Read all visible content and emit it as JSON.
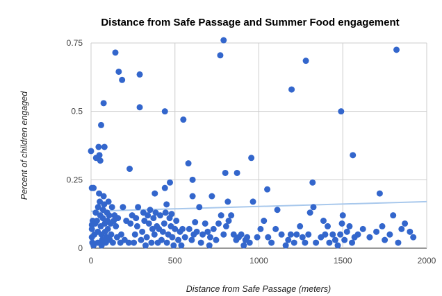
{
  "chart_data": {
    "type": "scatter",
    "title": "Distance from Safe Passage and Summer Food engagement",
    "xlabel": "Distance from Safe Passage (meters)",
    "ylabel": "Percent of children engaged",
    "xlim": [
      0,
      2000
    ],
    "ylim": [
      0,
      0.75
    ],
    "x_ticks": [
      "0",
      "500",
      "1000",
      "1500",
      "2000"
    ],
    "y_ticks": [
      "0",
      "0.25",
      "0.5",
      "0.75"
    ],
    "grid": true,
    "legend": "none",
    "colors": {
      "points": "#3366cc",
      "trendline": "#a8c8ec",
      "grid": "#cccccc"
    },
    "trendline": {
      "x": [
        0,
        2000
      ],
      "y": [
        0.135,
        0.17
      ]
    },
    "series": [
      {
        "points": [
          [
            0,
            0.355
          ],
          [
            5,
            0.22
          ],
          [
            15,
            0.22
          ],
          [
            30,
            0.33
          ],
          [
            45,
            0.37
          ],
          [
            50,
            0.34
          ],
          [
            55,
            0.32
          ],
          [
            60,
            0.45
          ],
          [
            75,
            0.53
          ],
          [
            80,
            0.37
          ],
          [
            145,
            0.715
          ],
          [
            165,
            0.645
          ],
          [
            185,
            0.615
          ],
          [
            290,
            0.635
          ],
          [
            290,
            0.515
          ],
          [
            440,
            0.5
          ],
          [
            550,
            0.47
          ],
          [
            580,
            0.31
          ],
          [
            605,
            0.25
          ],
          [
            605,
            0.19
          ],
          [
            645,
            0.15
          ],
          [
            620,
            0.095
          ],
          [
            720,
            0.19
          ],
          [
            770,
            0.705
          ],
          [
            790,
            0.76
          ],
          [
            800,
            0.275
          ],
          [
            815,
            0.17
          ],
          [
            870,
            0.275
          ],
          [
            955,
            0.33
          ],
          [
            965,
            0.17
          ],
          [
            1050,
            0.215
          ],
          [
            1110,
            0.14
          ],
          [
            1195,
            0.58
          ],
          [
            1280,
            0.685
          ],
          [
            1320,
            0.24
          ],
          [
            1490,
            0.5
          ],
          [
            1560,
            0.34
          ],
          [
            1820,
            0.725
          ],
          [
            1870,
            0.09
          ],
          [
            1720,
            0.2
          ],
          [
            230,
            0.29
          ],
          [
            380,
            0.2
          ],
          [
            440,
            0.22
          ],
          [
            450,
            0.16
          ],
          [
            470,
            0.24
          ],
          [
            480,
            0.125
          ],
          [
            10,
            0.1
          ],
          [
            5,
            0.085
          ],
          [
            5,
            0.07
          ],
          [
            5,
            0.04
          ],
          [
            8,
            0.02
          ],
          [
            15,
            0.01
          ],
          [
            20,
            0.05
          ],
          [
            25,
            0.09
          ],
          [
            28,
            0.13
          ],
          [
            35,
            0.1
          ],
          [
            40,
            0.06
          ],
          [
            40,
            0.02
          ],
          [
            42,
            0.15
          ],
          [
            48,
            0.2
          ],
          [
            52,
            0.17
          ],
          [
            55,
            0.12
          ],
          [
            58,
            0.08
          ],
          [
            62,
            0.05
          ],
          [
            63,
            0.01
          ],
          [
            66,
            0.03
          ],
          [
            70,
            0.11
          ],
          [
            72,
            0.14
          ],
          [
            75,
            0.19
          ],
          [
            78,
            0.16
          ],
          [
            82,
            0.09
          ],
          [
            84,
            0.06
          ],
          [
            88,
            0.02
          ],
          [
            92,
            0.04
          ],
          [
            95,
            0.13
          ],
          [
            98,
            0.1
          ],
          [
            100,
            0.07
          ],
          [
            104,
            0.17
          ],
          [
            108,
            0.12
          ],
          [
            112,
            0.03
          ],
          [
            116,
            0.09
          ],
          [
            120,
            0.05
          ],
          [
            125,
            0.15
          ],
          [
            130,
            0.02
          ],
          [
            135,
            0.1
          ],
          [
            140,
            0.12
          ],
          [
            148,
            0.08
          ],
          [
            155,
            0.04
          ],
          [
            160,
            0.11
          ],
          [
            175,
            0.02
          ],
          [
            180,
            0.05
          ],
          [
            190,
            0.15
          ],
          [
            200,
            0.03
          ],
          [
            210,
            0.1
          ],
          [
            225,
            0.02
          ],
          [
            235,
            0.09
          ],
          [
            245,
            0.12
          ],
          [
            255,
            0.02
          ],
          [
            262,
            0.05
          ],
          [
            268,
            0.11
          ],
          [
            275,
            0.08
          ],
          [
            280,
            0.15
          ],
          [
            298,
            0.03
          ],
          [
            305,
            0.06
          ],
          [
            312,
            0.13
          ],
          [
            318,
            0.1
          ],
          [
            325,
            0.01
          ],
          [
            332,
            0.04
          ],
          [
            338,
            0.12
          ],
          [
            345,
            0.09
          ],
          [
            352,
            0.14
          ],
          [
            360,
            0.02
          ],
          [
            366,
            0.07
          ],
          [
            372,
            0.11
          ],
          [
            378,
            0.05
          ],
          [
            385,
            0.13
          ],
          [
            392,
            0.08
          ],
          [
            398,
            0.02
          ],
          [
            405,
            0.07
          ],
          [
            412,
            0.12
          ],
          [
            420,
            0.03
          ],
          [
            428,
            0.06
          ],
          [
            436,
            0.09
          ],
          [
            444,
            0.13
          ],
          [
            452,
            0.02
          ],
          [
            460,
            0.05
          ],
          [
            468,
            0.11
          ],
          [
            476,
            0.08
          ],
          [
            484,
            0.04
          ],
          [
            492,
            0.01
          ],
          [
            500,
            0.07
          ],
          [
            508,
            0.1
          ],
          [
            520,
            0.03
          ],
          [
            530,
            0.06
          ],
          [
            538,
            0.01
          ],
          [
            545,
            0.07
          ],
          [
            560,
            0.04
          ],
          [
            585,
            0.07
          ],
          [
            600,
            0.03
          ],
          [
            612,
            0.05
          ],
          [
            630,
            0.06
          ],
          [
            655,
            0.02
          ],
          [
            665,
            0.05
          ],
          [
            680,
            0.09
          ],
          [
            695,
            0.06
          ],
          [
            705,
            0.01
          ],
          [
            710,
            0.04
          ],
          [
            730,
            0.07
          ],
          [
            745,
            0.03
          ],
          [
            760,
            0.09
          ],
          [
            775,
            0.12
          ],
          [
            790,
            0.05
          ],
          [
            805,
            0.08
          ],
          [
            820,
            0.1
          ],
          [
            835,
            0.12
          ],
          [
            850,
            0.05
          ],
          [
            865,
            0.03
          ],
          [
            880,
            0.04
          ],
          [
            895,
            0.05
          ],
          [
            910,
            0.01
          ],
          [
            920,
            0.03
          ],
          [
            930,
            0.04
          ],
          [
            945,
            0.02
          ],
          [
            990,
            0.04
          ],
          [
            1010,
            0.07
          ],
          [
            1030,
            0.1
          ],
          [
            1055,
            0.04
          ],
          [
            1075,
            0.02
          ],
          [
            1100,
            0.07
          ],
          [
            1135,
            0.05
          ],
          [
            1160,
            0.01
          ],
          [
            1175,
            0.03
          ],
          [
            1190,
            0.05
          ],
          [
            1210,
            0.02
          ],
          [
            1225,
            0.05
          ],
          [
            1245,
            0.08
          ],
          [
            1260,
            0.04
          ],
          [
            1275,
            0.02
          ],
          [
            1295,
            0.05
          ],
          [
            1305,
            0.13
          ],
          [
            1325,
            0.15
          ],
          [
            1340,
            0.02
          ],
          [
            1370,
            0.04
          ],
          [
            1385,
            0.1
          ],
          [
            1395,
            0.05
          ],
          [
            1410,
            0.08
          ],
          [
            1420,
            0.02
          ],
          [
            1440,
            0.05
          ],
          [
            1455,
            0.03
          ],
          [
            1470,
            0.01
          ],
          [
            1485,
            0.05
          ],
          [
            1495,
            0.09
          ],
          [
            1500,
            0.12
          ],
          [
            1510,
            0.03
          ],
          [
            1525,
            0.06
          ],
          [
            1540,
            0.08
          ],
          [
            1555,
            0.02
          ],
          [
            1570,
            0.04
          ],
          [
            1590,
            0.05
          ],
          [
            1620,
            0.07
          ],
          [
            1660,
            0.04
          ],
          [
            1700,
            0.06
          ],
          [
            1735,
            0.08
          ],
          [
            1750,
            0.03
          ],
          [
            1780,
            0.05
          ],
          [
            1800,
            0.12
          ],
          [
            1830,
            0.02
          ],
          [
            1850,
            0.07
          ],
          [
            1900,
            0.06
          ],
          [
            1920,
            0.04
          ]
        ]
      }
    ]
  }
}
